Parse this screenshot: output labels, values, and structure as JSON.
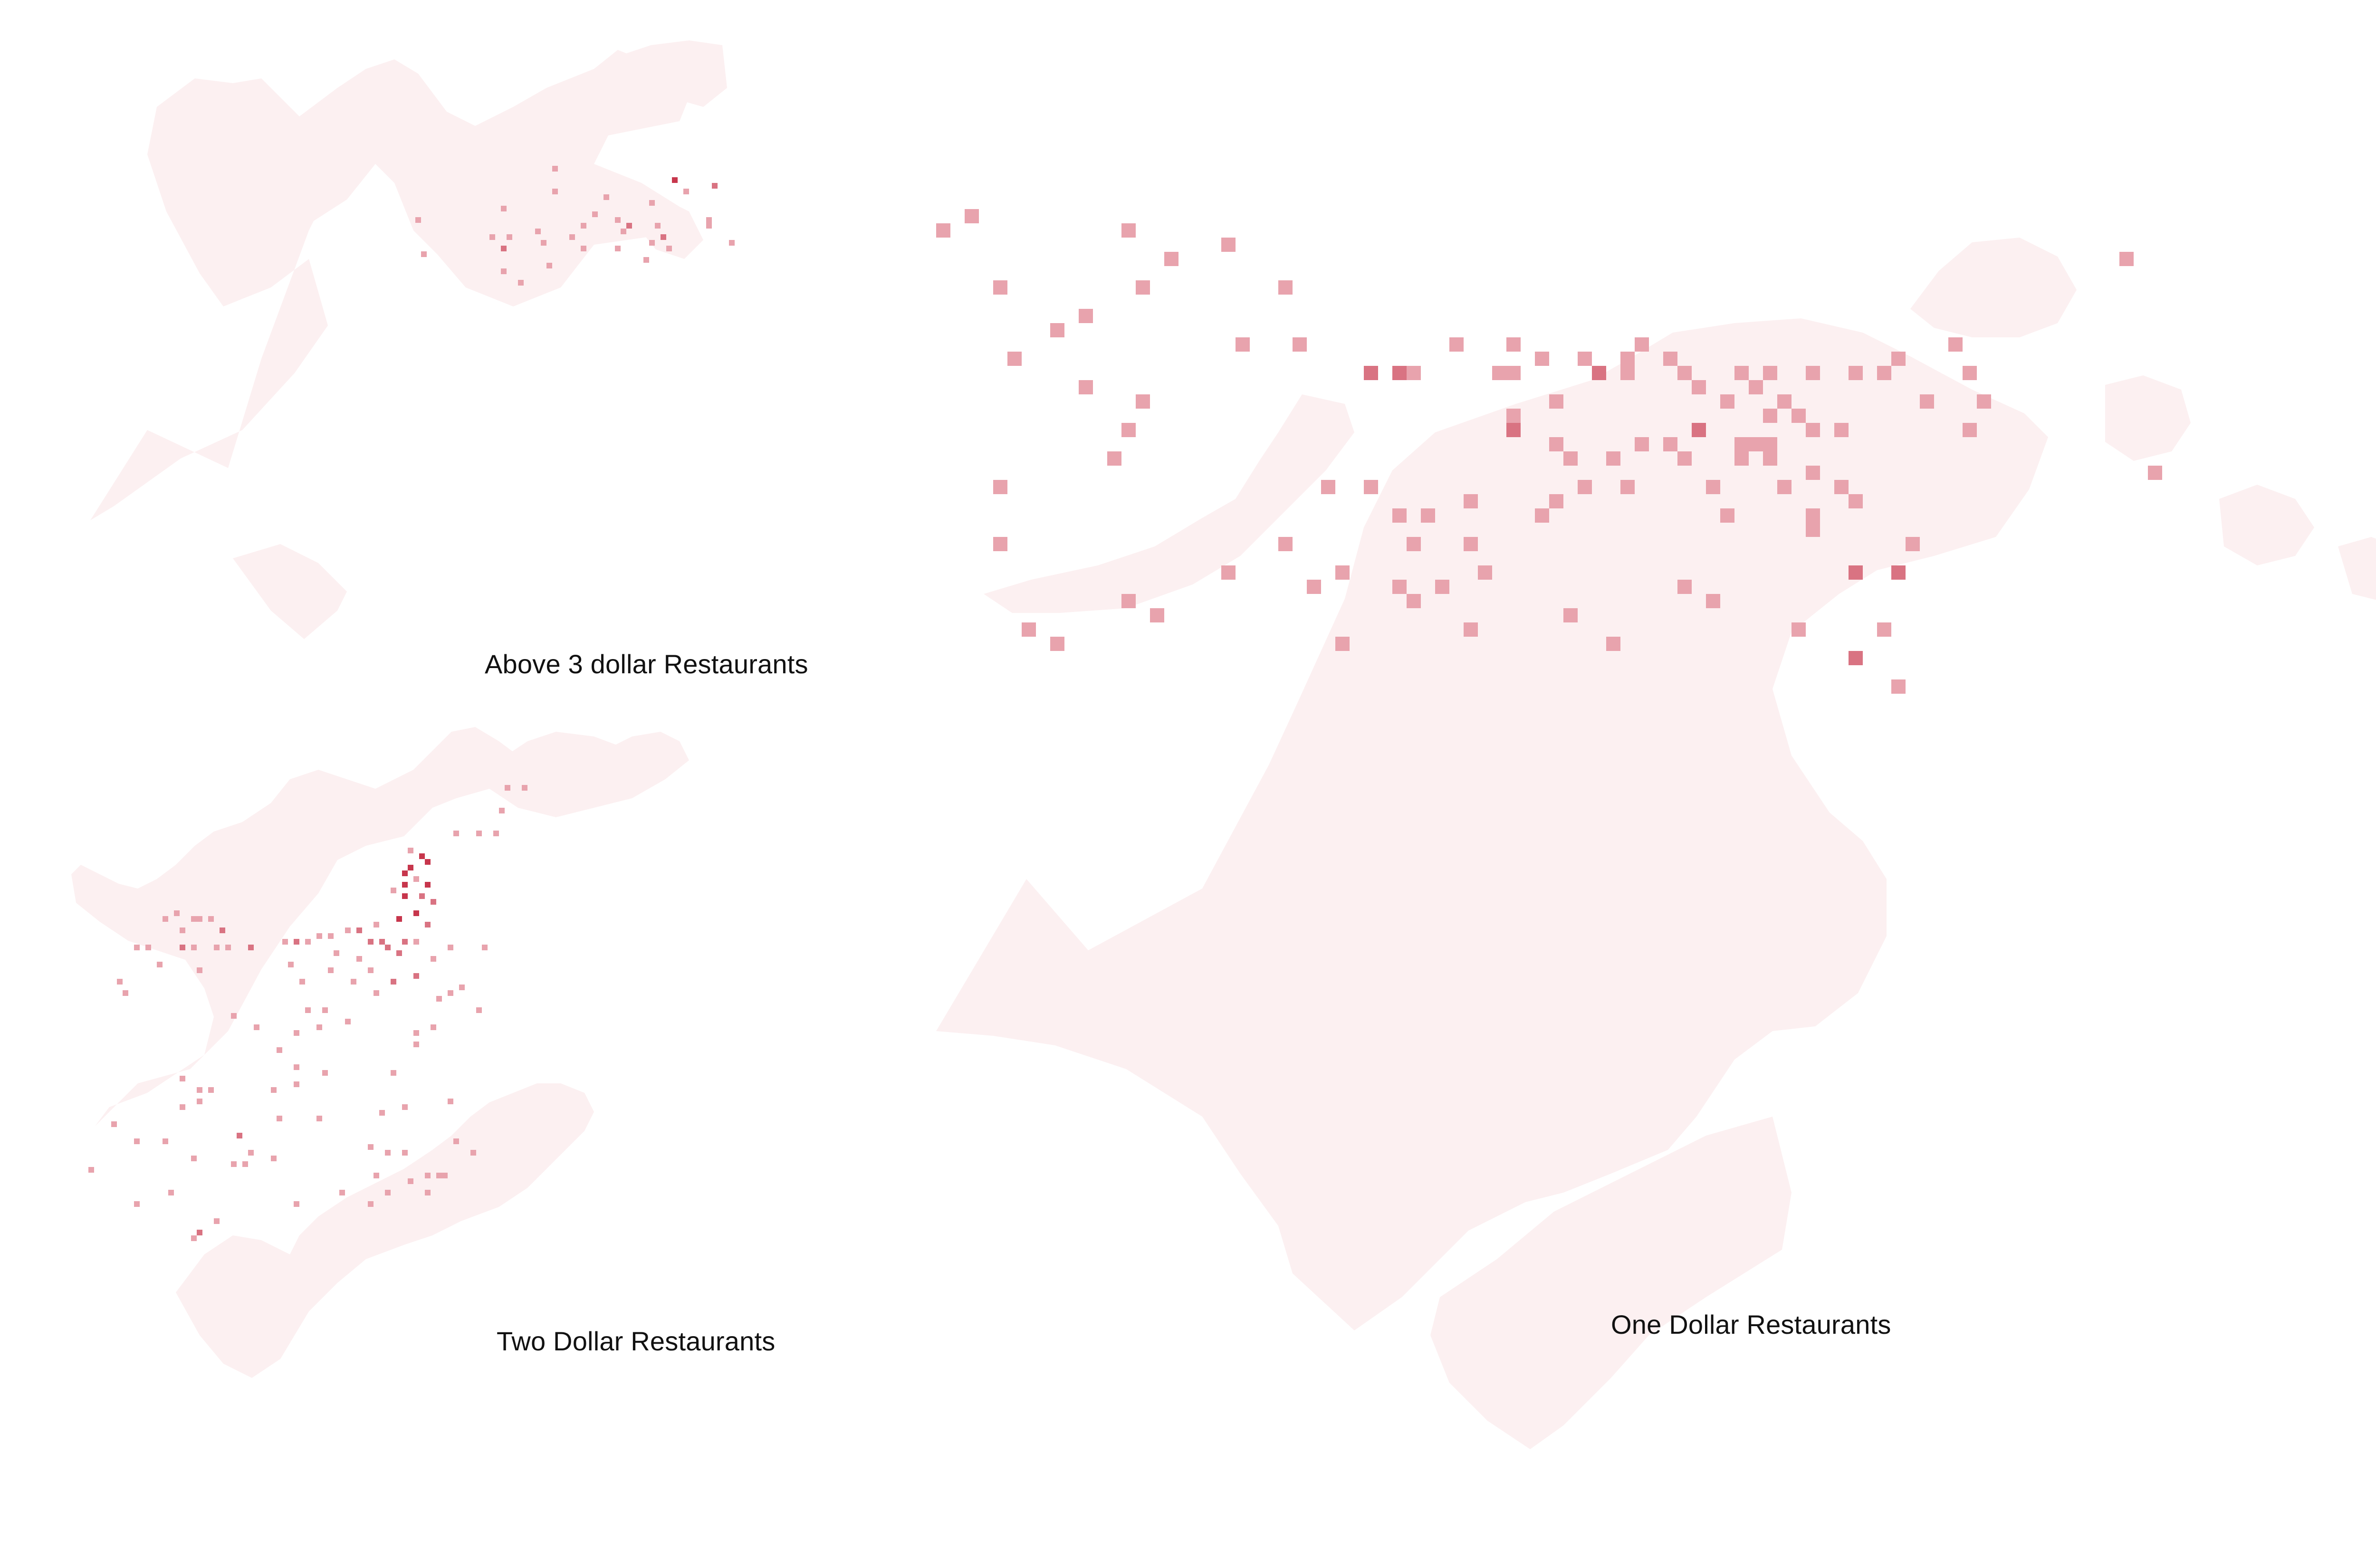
{
  "colors": {
    "background": "#ffffff",
    "land": "#fcf0f1",
    "cell_low": "#e8a3ad",
    "cell_mid": "#d97382",
    "cell_high": "#c7364c"
  },
  "maps": [
    {
      "id": "above3",
      "title": "Above 3 dollar Restaurants",
      "cells": [
        [
          36,
          2,
          1
        ],
        [
          57,
          4,
          3
        ],
        [
          36,
          6,
          1
        ],
        [
          59,
          6,
          1
        ],
        [
          64,
          5,
          2
        ],
        [
          45,
          7,
          1
        ],
        [
          53,
          8,
          1
        ],
        [
          27,
          9,
          1
        ],
        [
          43,
          10,
          1
        ],
        [
          12,
          11,
          1
        ],
        [
          47,
          11,
          1
        ],
        [
          63,
          11,
          1
        ],
        [
          41,
          12,
          1
        ],
        [
          49,
          12,
          2
        ],
        [
          54,
          12,
          1
        ],
        [
          63,
          12,
          1
        ],
        [
          25,
          14,
          1
        ],
        [
          28,
          14,
          1
        ],
        [
          33,
          13,
          1
        ],
        [
          39,
          14,
          1
        ],
        [
          48,
          13,
          1
        ],
        [
          53,
          15,
          1
        ],
        [
          67,
          15,
          1
        ],
        [
          55,
          14,
          2
        ],
        [
          13,
          17,
          1
        ],
        [
          27,
          16,
          2
        ],
        [
          34,
          15,
          1
        ],
        [
          41,
          16,
          1
        ],
        [
          47,
          16,
          1
        ],
        [
          52,
          18,
          1
        ],
        [
          56,
          16,
          1
        ],
        [
          27,
          20,
          1
        ],
        [
          35,
          19,
          1
        ],
        [
          30,
          22,
          1
        ]
      ]
    },
    {
      "id": "two",
      "title": "Two Dollar Restaurants",
      "cells": [
        [
          76,
          11,
          1
        ],
        [
          79,
          11,
          1
        ],
        [
          75,
          15,
          1
        ],
        [
          67,
          19,
          1
        ],
        [
          71,
          19,
          1
        ],
        [
          74,
          19,
          1
        ],
        [
          59,
          22,
          1
        ],
        [
          61,
          23,
          3
        ],
        [
          62,
          24,
          3
        ],
        [
          59,
          25,
          3
        ],
        [
          58,
          26,
          3
        ],
        [
          60,
          27,
          1
        ],
        [
          58,
          28,
          3
        ],
        [
          62,
          28,
          3
        ],
        [
          56,
          29,
          1
        ],
        [
          58,
          30,
          3
        ],
        [
          61,
          30,
          2
        ],
        [
          63,
          31,
          2
        ],
        [
          60,
          33,
          3
        ],
        [
          57,
          34,
          3
        ],
        [
          62,
          35,
          2
        ],
        [
          53,
          35,
          1
        ],
        [
          50,
          36,
          2
        ],
        [
          48,
          36,
          1
        ],
        [
          45,
          37,
          1
        ],
        [
          43,
          37,
          1
        ],
        [
          41,
          38,
          1
        ],
        [
          39,
          38,
          2
        ],
        [
          37,
          38,
          1
        ],
        [
          52,
          38,
          2
        ],
        [
          54,
          38,
          2
        ],
        [
          58,
          38,
          2
        ],
        [
          60,
          38,
          1
        ],
        [
          55,
          39,
          2
        ],
        [
          57,
          40,
          2
        ],
        [
          46,
          40,
          1
        ],
        [
          50,
          41,
          1
        ],
        [
          63,
          41,
          1
        ],
        [
          25,
          39,
          1
        ],
        [
          27,
          39,
          1
        ],
        [
          31,
          39,
          2
        ],
        [
          66,
          39,
          1
        ],
        [
          72,
          39,
          1
        ],
        [
          60,
          44,
          2
        ],
        [
          56,
          45,
          2
        ],
        [
          45,
          43,
          1
        ],
        [
          49,
          45,
          1
        ],
        [
          68,
          46,
          1
        ],
        [
          64,
          48,
          1
        ],
        [
          53,
          47,
          1
        ],
        [
          44,
          50,
          1
        ],
        [
          71,
          50,
          1
        ],
        [
          48,
          52,
          1
        ],
        [
          38,
          42,
          1
        ],
        [
          52,
          43,
          1
        ],
        [
          19,
          39,
          2
        ],
        [
          21,
          39,
          1
        ],
        [
          13,
          39,
          1
        ],
        [
          11,
          39,
          1
        ],
        [
          15,
          42,
          1
        ],
        [
          22,
          43,
          1
        ],
        [
          8,
          45,
          1
        ],
        [
          9,
          47,
          1
        ],
        [
          40,
          45,
          1
        ],
        [
          41,
          50,
          1
        ],
        [
          32,
          53,
          1
        ],
        [
          43,
          53,
          1
        ],
        [
          28,
          51,
          1
        ],
        [
          39,
          54,
          1
        ],
        [
          36,
          57,
          1
        ],
        [
          22,
          34,
          1
        ],
        [
          24,
          34,
          1
        ],
        [
          26,
          36,
          2
        ],
        [
          19,
          36,
          1
        ],
        [
          21,
          34,
          1
        ],
        [
          18,
          33,
          1
        ],
        [
          16,
          34,
          1
        ],
        [
          66,
          47,
          1
        ],
        [
          60,
          54,
          1
        ],
        [
          22,
          64,
          1
        ],
        [
          24,
          64,
          1
        ],
        [
          22,
          66,
          1
        ],
        [
          19,
          67,
          1
        ],
        [
          19,
          62,
          1
        ],
        [
          39,
          60,
          1
        ],
        [
          39,
          63,
          1
        ],
        [
          35,
          64,
          1
        ],
        [
          63,
          53,
          1
        ],
        [
          60,
          56,
          1
        ],
        [
          56,
          61,
          1
        ],
        [
          44,
          61,
          1
        ],
        [
          43,
          69,
          1
        ],
        [
          36,
          69,
          1
        ],
        [
          54,
          68,
          1
        ],
        [
          58,
          67,
          1
        ],
        [
          66,
          66,
          1
        ],
        [
          55,
          75,
          1
        ],
        [
          58,
          75,
          1
        ],
        [
          52,
          74,
          1
        ],
        [
          53,
          79,
          1
        ],
        [
          62,
          79,
          1
        ],
        [
          64,
          79,
          1
        ],
        [
          62,
          82,
          1
        ],
        [
          67,
          73,
          1
        ],
        [
          70,
          75,
          1
        ],
        [
          11,
          73,
          1
        ],
        [
          16,
          73,
          1
        ],
        [
          21,
          76,
          1
        ],
        [
          29,
          72,
          2
        ],
        [
          28,
          77,
          1
        ],
        [
          30,
          77,
          1
        ],
        [
          31,
          75,
          1
        ],
        [
          35,
          76,
          1
        ],
        [
          11,
          84,
          1
        ],
        [
          17,
          82,
          1
        ],
        [
          3,
          78,
          1
        ],
        [
          7,
          70,
          1
        ],
        [
          22,
          89,
          2
        ],
        [
          21,
          90,
          1
        ],
        [
          25,
          87,
          1
        ],
        [
          39,
          84,
          1
        ],
        [
          47,
          82,
          1
        ],
        [
          52,
          84,
          1
        ],
        [
          55,
          82,
          1
        ],
        [
          59,
          80,
          1
        ],
        [
          65,
          79,
          1
        ]
      ]
    },
    {
      "id": "one",
      "title": "One Dollar Restaurants",
      "cells": [
        [
          83,
          6,
          1
        ],
        [
          48,
          14,
          1
        ],
        [
          43,
          16,
          1
        ],
        [
          69,
          16,
          1
        ],
        [
          72,
          18,
          1
        ],
        [
          63,
          18,
          1
        ],
        [
          85,
          21,
          1
        ],
        [
          55,
          24,
          1
        ],
        [
          67,
          13,
          1
        ],
        [
          49,
          12,
          1
        ],
        [
          71,
          12,
          1
        ],
        [
          72,
          14,
          1
        ],
        [
          64,
          14,
          1
        ],
        [
          66,
          14,
          1
        ],
        [
          73,
          16,
          1
        ],
        [
          61,
          21,
          1
        ],
        [
          63,
          22,
          1
        ],
        [
          64,
          23,
          1
        ],
        [
          48,
          22,
          1
        ],
        [
          45,
          22,
          1
        ],
        [
          43,
          23,
          1
        ],
        [
          42,
          24,
          1
        ],
        [
          37,
          26,
          1
        ],
        [
          38,
          28,
          1
        ],
        [
          34,
          24,
          1
        ],
        [
          37,
          23,
          1
        ],
        [
          33,
          26,
          1
        ],
        [
          32,
          24,
          1
        ],
        [
          30,
          22,
          1
        ],
        [
          27,
          22,
          1
        ],
        [
          24,
          26,
          1
        ],
        [
          26,
          29,
          1
        ],
        [
          28,
          33,
          1
        ],
        [
          20,
          28,
          1
        ],
        [
          15,
          31,
          1
        ],
        [
          13,
          30,
          1
        ],
        [
          8,
          33,
          1
        ],
        [
          6,
          32,
          1
        ],
        [
          4,
          26,
          1
        ],
        [
          4,
          22,
          1
        ],
        [
          12,
          20,
          1
        ],
        [
          13,
          18,
          1
        ],
        [
          14,
          16,
          1
        ],
        [
          10,
          15,
          1
        ],
        [
          5,
          13,
          1
        ],
        [
          8,
          11,
          1
        ],
        [
          10,
          10,
          1
        ],
        [
          14,
          8,
          1
        ],
        [
          16,
          6,
          1
        ],
        [
          21,
          12,
          1
        ],
        [
          25,
          12,
          1
        ],
        [
          24,
          8,
          1
        ],
        [
          20,
          5,
          1
        ],
        [
          13,
          4,
          1
        ],
        [
          4,
          8,
          1
        ],
        [
          0,
          4,
          1
        ],
        [
          2,
          3,
          1
        ],
        [
          30,
          14,
          2
        ],
        [
          32,
          14,
          2
        ],
        [
          33,
          14,
          1
        ],
        [
          36,
          12,
          1
        ],
        [
          40,
          12,
          1
        ],
        [
          40,
          17,
          1
        ],
        [
          40,
          18,
          2
        ],
        [
          43,
          19,
          1
        ],
        [
          44,
          20,
          1
        ],
        [
          47,
          20,
          1
        ],
        [
          52,
          20,
          1
        ],
        [
          56,
          19,
          1
        ],
        [
          58,
          19,
          1
        ],
        [
          61,
          18,
          1
        ],
        [
          60,
          17,
          1
        ],
        [
          59,
          16,
          1
        ],
        [
          61,
          14,
          1
        ],
        [
          58,
          14,
          1
        ],
        [
          56,
          14,
          1
        ],
        [
          53,
          15,
          1
        ],
        [
          51,
          13,
          1
        ],
        [
          48,
          13,
          1
        ],
        [
          46,
          14,
          2
        ],
        [
          45,
          13,
          1
        ],
        [
          42,
          13,
          1
        ],
        [
          40,
          14,
          1
        ],
        [
          39,
          14,
          1
        ],
        [
          52,
          14,
          1
        ],
        [
          58,
          17,
          1
        ],
        [
          55,
          16,
          1
        ],
        [
          57,
          15,
          1
        ],
        [
          53,
          18,
          2
        ],
        [
          51,
          19,
          1
        ],
        [
          49,
          19,
          1
        ],
        [
          28,
          28,
          1
        ],
        [
          32,
          29,
          1
        ],
        [
          33,
          30,
          1
        ],
        [
          35,
          29,
          1
        ],
        [
          37,
          32,
          1
        ],
        [
          44,
          31,
          1
        ],
        [
          47,
          33,
          1
        ],
        [
          52,
          29,
          1
        ],
        [
          54,
          30,
          1
        ],
        [
          60,
          32,
          1
        ],
        [
          64,
          34,
          2
        ],
        [
          67,
          36,
          1
        ],
        [
          66,
          32,
          1
        ],
        [
          64,
          28,
          2
        ],
        [
          68,
          26,
          1
        ],
        [
          59,
          22,
          1
        ],
        [
          58,
          20,
          1
        ],
        [
          57,
          19,
          1
        ],
        [
          56,
          20,
          1
        ],
        [
          54,
          22,
          1
        ],
        [
          55,
          24,
          1
        ],
        [
          61,
          24,
          1
        ],
        [
          61,
          25,
          1
        ],
        [
          67,
          28,
          2
        ]
      ]
    }
  ]
}
